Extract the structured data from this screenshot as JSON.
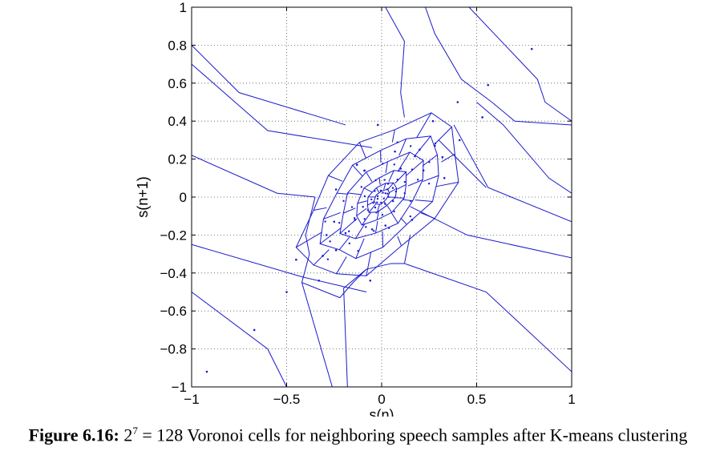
{
  "chart_data": {
    "type": "scatter",
    "title": "",
    "xlabel": "s(n)",
    "ylabel": "s(n+1)",
    "xlim": [
      -1,
      1
    ],
    "ylim": [
      -1,
      1
    ],
    "grid": true,
    "xticks": [
      -1,
      -0.5,
      0,
      0.5,
      1
    ],
    "xtick_labels": [
      "−1",
      "−0.5",
      "0",
      "0.5",
      "1"
    ],
    "yticks": [
      -1,
      -0.8,
      -0.6,
      -0.4,
      -0.2,
      0,
      0.2,
      0.4,
      0.6,
      0.8,
      1
    ],
    "ytick_labels": [
      "−1",
      "−0.8",
      "−0.6",
      "−0.4",
      "−0.2",
      "0",
      "0.2",
      "0.4",
      "0.6",
      "0.8",
      "1"
    ],
    "centroids": [
      [
        0.79,
        0.78
      ],
      [
        0.56,
        0.59
      ],
      [
        0.4,
        0.5
      ],
      [
        0.53,
        0.42
      ],
      [
        -0.02,
        0.38
      ],
      [
        0.27,
        0.4
      ],
      [
        0.41,
        0.3
      ],
      [
        0.28,
        0.27
      ],
      [
        0.2,
        0.25
      ],
      [
        0.07,
        0.24
      ],
      [
        -0.13,
        0.17
      ],
      [
        0.32,
        0.21
      ],
      [
        -0.09,
        0.14
      ],
      [
        0.22,
        0.14
      ],
      [
        -0.24,
        0.04
      ],
      [
        -0.05,
        -0.17
      ],
      [
        0.16,
        -0.12
      ],
      [
        -0.25,
        -0.13
      ],
      [
        -0.19,
        -0.19
      ],
      [
        -0.29,
        -0.2
      ],
      [
        0.02,
        -0.15
      ],
      [
        -0.24,
        -0.28
      ],
      [
        -0.31,
        -0.31
      ],
      [
        -0.45,
        -0.33
      ],
      [
        -0.33,
        -0.44
      ],
      [
        -0.06,
        -0.44
      ],
      [
        -0.5,
        -0.5
      ],
      [
        -0.67,
        -0.7
      ],
      [
        -0.92,
        -0.92
      ],
      [
        0.33,
        0.1
      ],
      [
        0.1,
        0.15
      ],
      [
        -0.14,
        -0.12
      ]
    ],
    "voronoi_edges": [
      [
        [
          -1,
          0.8
        ],
        [
          -0.75,
          0.55
        ],
        [
          -0.19,
          0.38
        ]
      ],
      [
        [
          -1,
          0.7
        ],
        [
          -0.6,
          0.35
        ],
        [
          -0.05,
          0.26
        ]
      ],
      [
        [
          -1,
          0.22
        ],
        [
          -0.55,
          0.02
        ],
        [
          -0.35,
          0
        ]
      ],
      [
        [
          -1,
          -0.25
        ],
        [
          -0.42,
          -0.42
        ],
        [
          -0.08,
          -0.5
        ]
      ],
      [
        [
          -1,
          -0.5
        ],
        [
          -0.6,
          -0.8
        ],
        [
          -0.5,
          -1
        ]
      ],
      [
        [
          -0.26,
          -1
        ],
        [
          -0.42,
          -0.45
        ]
      ],
      [
        [
          -0.18,
          -1
        ],
        [
          -0.2,
          -0.48
        ],
        [
          -0.08,
          -0.38
        ]
      ],
      [
        [
          0.02,
          1
        ],
        [
          0.12,
          0.82
        ],
        [
          0.1,
          0.55
        ],
        [
          0.12,
          0.42
        ]
      ],
      [
        [
          0.23,
          1
        ],
        [
          0.28,
          0.86
        ],
        [
          0.42,
          0.62
        ],
        [
          0.58,
          0.5
        ]
      ],
      [
        [
          0.46,
          1
        ],
        [
          0.82,
          0.62
        ],
        [
          0.86,
          0.5
        ],
        [
          1,
          0.4
        ]
      ],
      [
        [
          0.5,
          0.5
        ],
        [
          0.64,
          0.38
        ],
        [
          0.88,
          0.1
        ],
        [
          1,
          0.02
        ]
      ],
      [
        [
          0.58,
          0.5
        ],
        [
          0.7,
          0.4
        ],
        [
          1,
          0.38
        ]
      ],
      [
        [
          0.38,
          0.38
        ],
        [
          0.56,
          0.05
        ],
        [
          1,
          -0.13
        ]
      ],
      [
        [
          0.3,
          0.3
        ],
        [
          0.4,
          0.2
        ],
        [
          0.55,
          0.05
        ]
      ],
      [
        [
          0.15,
          -0.05
        ],
        [
          0.45,
          -0.2
        ],
        [
          1,
          -0.32
        ]
      ],
      [
        [
          0.12,
          -0.35
        ],
        [
          0.55,
          -0.5
        ],
        [
          1,
          -0.92
        ]
      ],
      [
        [
          -0.35,
          0
        ],
        [
          -0.4,
          -0.2
        ],
        [
          -0.38,
          -0.3
        ],
        [
          -0.42,
          -0.45
        ]
      ],
      [
        [
          -0.42,
          -0.45
        ],
        [
          -0.22,
          -0.53
        ],
        [
          -0.15,
          -0.45
        ],
        [
          -0.08,
          -0.38
        ]
      ],
      [
        [
          -0.08,
          -0.38
        ],
        [
          0.05,
          -0.35
        ],
        [
          0.12,
          -0.35
        ],
        [
          0.15,
          -0.2
        ]
      ]
    ]
  },
  "caption": {
    "label": "Figure 6.16:",
    "base": "2",
    "exponent": "7",
    "equals": "= 128",
    "text": "Voronoi cells for neighboring speech samples after K-means clustering"
  },
  "colors": {
    "line": "#1a1acd",
    "point": "#1a1acd",
    "axis": "#000000",
    "grid": "#555555"
  }
}
